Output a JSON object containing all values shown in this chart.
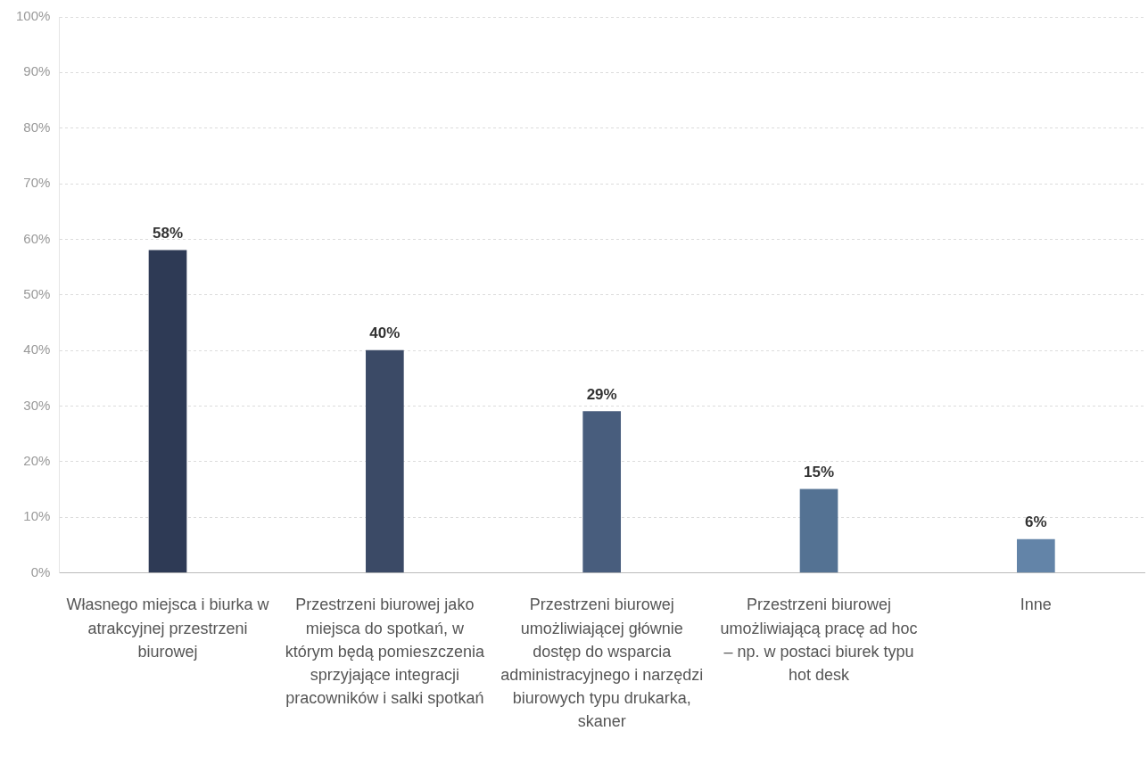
{
  "chart_data": {
    "type": "bar",
    "categories": [
      "Własnego miejsca i biurka w atrakcyjnej przestrzeni biurowej",
      "Przestrzeni biurowej jako miejsca do spotkań, w którym będą pomieszczenia sprzyjające integracji pracowników i salki spotkań",
      "Przestrzeni biurowej umożliwiającej głównie dostęp do wsparcia administracyjnego i narzędzi biurowych typu drukarka, skaner",
      "Przestrzeni biurowej umożliwiającą pracę ad hoc – np. w postaci biurek typu hot desk",
      "Inne"
    ],
    "values": [
      58,
      40,
      29,
      15,
      6
    ],
    "colors": [
      "#2e3a55",
      "#3b4a66",
      "#485d7d",
      "#547293",
      "#6384a8"
    ],
    "value_labels": [
      "58%",
      "40%",
      "29%",
      "15%",
      "6%"
    ],
    "ylim": [
      0,
      100
    ],
    "yticks": [
      {
        "value": 0,
        "label": "0%"
      },
      {
        "value": 10,
        "label": "10%"
      },
      {
        "value": 20,
        "label": "20%"
      },
      {
        "value": 30,
        "label": "30%"
      },
      {
        "value": 40,
        "label": "40%"
      },
      {
        "value": 50,
        "label": "50%"
      },
      {
        "value": 60,
        "label": "60%"
      },
      {
        "value": 70,
        "label": "70%"
      },
      {
        "value": 80,
        "label": "80%"
      },
      {
        "value": 90,
        "label": "90%"
      },
      {
        "value": 100,
        "label": "100%"
      }
    ],
    "grid": "y",
    "legend": false
  }
}
